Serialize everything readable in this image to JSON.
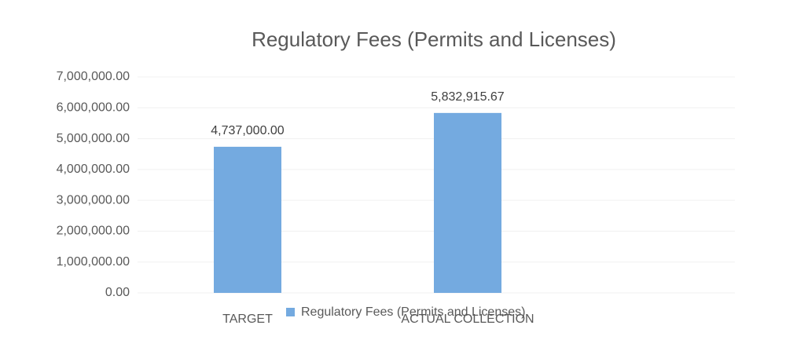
{
  "chart_data": {
    "type": "bar",
    "title": "Regulatory Fees (Permits and Licenses)",
    "categories": [
      "TARGET",
      "ACTUAL COLLECTION"
    ],
    "series": [
      {
        "name": "Regulatory Fees (Permits and Licenses)",
        "color": "#74aae0",
        "values": [
          4737000,
          5832915.67
        ],
        "value_labels": [
          "4,737,000.00",
          "5,832,915.67"
        ]
      }
    ],
    "ylim": [
      0,
      7000000
    ],
    "yticks": [
      {
        "value": 0,
        "label": "0.00"
      },
      {
        "value": 1000000,
        "label": "1,000,000.00"
      },
      {
        "value": 2000000,
        "label": "2,000,000.00"
      },
      {
        "value": 3000000,
        "label": "3,000,000.00"
      },
      {
        "value": 4000000,
        "label": "4,000,000.00"
      },
      {
        "value": 5000000,
        "label": "5,000,000.00"
      },
      {
        "value": 6000000,
        "label": "6,000,000.00"
      },
      {
        "value": 7000000,
        "label": "7,000,000.00"
      }
    ],
    "grid": true,
    "legend": "bottom"
  }
}
